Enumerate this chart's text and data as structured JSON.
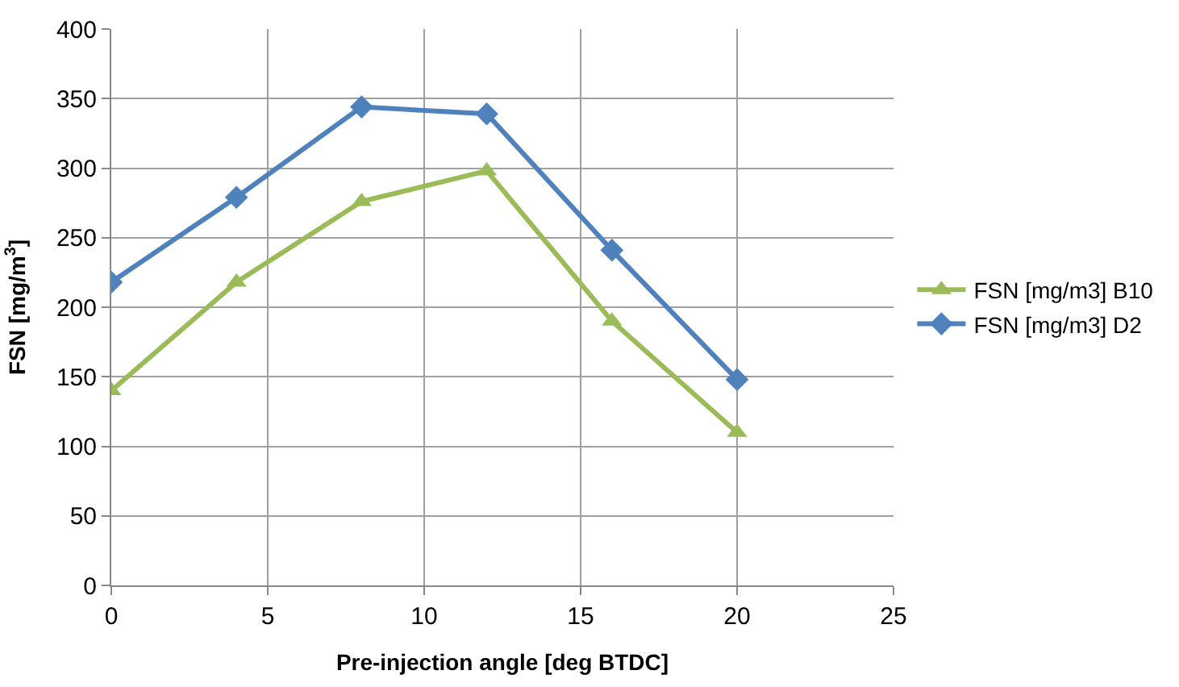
{
  "chart_data": {
    "type": "line",
    "xlabel": "Pre-injection angle [deg BTDC]",
    "ylabel": "FSN [mg/m$^{3}$]",
    "x": [
      0,
      4,
      8,
      12,
      16,
      20
    ],
    "series": [
      {
        "name": "FSN [mg/m3] B10",
        "color": "#9bbb59",
        "marker": "triangle",
        "values": [
          140,
          218,
          276,
          298,
          190,
          110
        ]
      },
      {
        "name": "FSN [mg/m3] D2",
        "color": "#4f81bd",
        "marker": "diamond",
        "values": [
          218,
          279,
          344,
          339,
          241,
          148
        ]
      }
    ],
    "xlim": [
      0,
      25
    ],
    "xticks": [
      0,
      5,
      10,
      15,
      20,
      25
    ],
    "ylim": [
      0,
      400
    ],
    "yticks": [
      0,
      50,
      100,
      150,
      200,
      250,
      300,
      350,
      400
    ],
    "grid": true,
    "legend": "right",
    "line_style": "solid"
  }
}
